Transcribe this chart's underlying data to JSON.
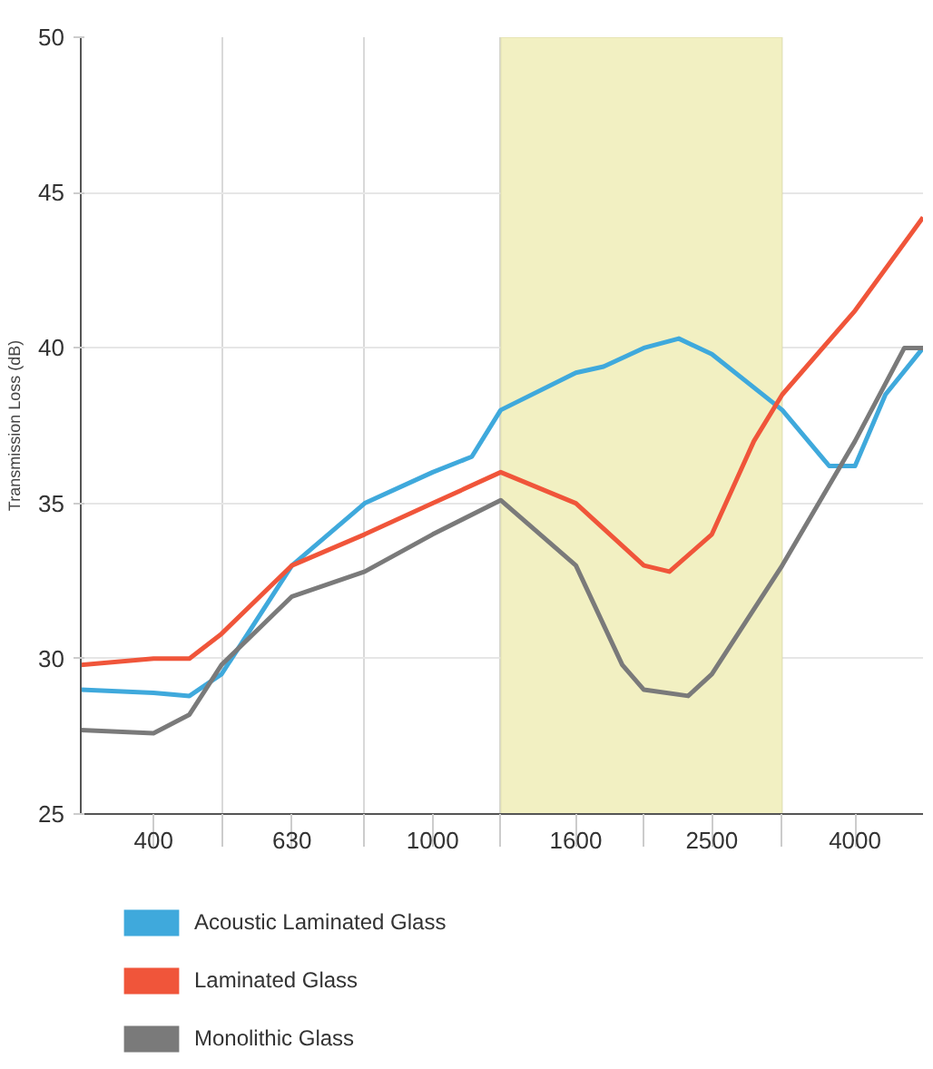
{
  "chart_data": {
    "type": "line",
    "ylabel": "Transmission Loss (dB)",
    "xlim": [
      315,
      5000
    ],
    "ylim": [
      25,
      50
    ],
    "log": "x",
    "xticks": [
      {
        "value": 500,
        "label": null
      },
      {
        "value": 800,
        "label": null
      },
      {
        "value": 1250,
        "label": null
      },
      {
        "value": 2000,
        "label": null
      },
      {
        "value": 3150,
        "label": null
      },
      400,
      630,
      1000,
      1600,
      2500,
      4000
    ],
    "yticks": [
      25,
      30,
      35,
      40,
      45,
      50
    ],
    "grid": true,
    "legend": "bottom",
    "marker": "none",
    "line_style": "solid",
    "bands": [
      {
        "axis": "x",
        "from": 1250,
        "to": 3150,
        "label": null,
        "color": "#f2f0c2"
      }
    ],
    "series": [
      {
        "name": "Acoustic Laminated Glass",
        "color": "#3fa9dc",
        "x": [
          315,
          400,
          450,
          500,
          630,
          800,
          1000,
          1137,
          1250,
          1600,
          1752,
          2000,
          2243,
          2500,
          3150,
          3675,
          4000,
          4420,
          5000
        ],
        "values": [
          29.0,
          28.9,
          28.8,
          29.5,
          33.0,
          35.0,
          36.0,
          36.5,
          38.0,
          39.2,
          39.4,
          40.0,
          40.3,
          39.8,
          38.0,
          36.2,
          36.2,
          38.5,
          40.0
        ]
      },
      {
        "name": "Laminated Glass",
        "color": "#f0553a",
        "x": [
          315,
          400,
          450,
          500,
          630,
          800,
          1000,
          1250,
          1600,
          2000,
          2175,
          2500,
          2870,
          3150,
          4000,
          5000
        ],
        "values": [
          29.8,
          30.0,
          30.0,
          30.8,
          33.0,
          34.0,
          35.0,
          36.0,
          35.0,
          33.0,
          32.8,
          34.0,
          37.0,
          38.5,
          41.2,
          44.2
        ]
      },
      {
        "name": "Monolithic Glass",
        "color": "#7a7a7a",
        "x": [
          315,
          400,
          450,
          500,
          630,
          800,
          1000,
          1250,
          1600,
          1863,
          2000,
          2313,
          2500,
          3150,
          4000,
          4703,
          5000
        ],
        "values": [
          27.7,
          27.6,
          28.2,
          29.8,
          32.0,
          32.8,
          34.0,
          35.1,
          33.0,
          29.8,
          29.0,
          28.8,
          29.5,
          33.0,
          37.0,
          40.0,
          40.0
        ]
      }
    ]
  }
}
